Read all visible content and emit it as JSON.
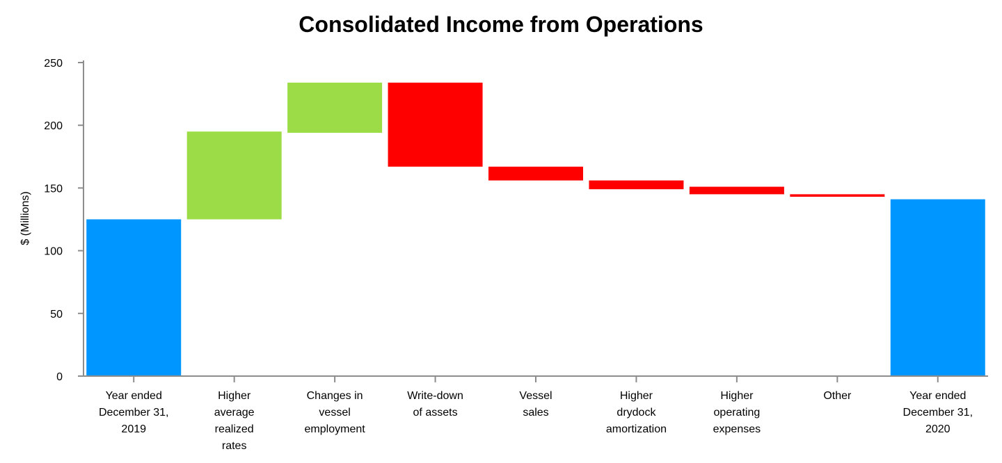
{
  "chart_data": {
    "type": "bar",
    "subtype": "waterfall",
    "title": "Consolidated Income from Operations",
    "xlabel": "",
    "ylabel": "$ (Millions)",
    "ylim": [
      0,
      250
    ],
    "yticks": [
      0,
      50,
      100,
      150,
      200,
      250
    ],
    "grid": false,
    "categories": [
      [
        "Year ended",
        "December 31,",
        "2019"
      ],
      [
        "Higher",
        "average",
        "realized",
        "rates"
      ],
      [
        "Changes in",
        "vessel",
        "employment"
      ],
      [
        "Write-down",
        "of assets"
      ],
      [
        "Vessel",
        "sales"
      ],
      [
        "Higher",
        "drydock",
        "amortization"
      ],
      [
        "Higher",
        "operating",
        "expenses"
      ],
      [
        "Other"
      ],
      [
        "Year ended",
        "December 31,",
        "2020"
      ]
    ],
    "bars": [
      {
        "kind": "total",
        "start": 0,
        "end": 125
      },
      {
        "kind": "increase",
        "start": 125,
        "end": 195
      },
      {
        "kind": "increase",
        "start": 194,
        "end": 234
      },
      {
        "kind": "decrease",
        "start": 234,
        "end": 167
      },
      {
        "kind": "decrease",
        "start": 167,
        "end": 156
      },
      {
        "kind": "decrease",
        "start": 156,
        "end": 149
      },
      {
        "kind": "decrease",
        "start": 151,
        "end": 145
      },
      {
        "kind": "decrease",
        "start": 145,
        "end": 143
      },
      {
        "kind": "total",
        "start": 0,
        "end": 141
      }
    ],
    "colors": {
      "total": "#0096ff",
      "increase": "#9cdc47",
      "decrease": "#ff0000"
    }
  }
}
